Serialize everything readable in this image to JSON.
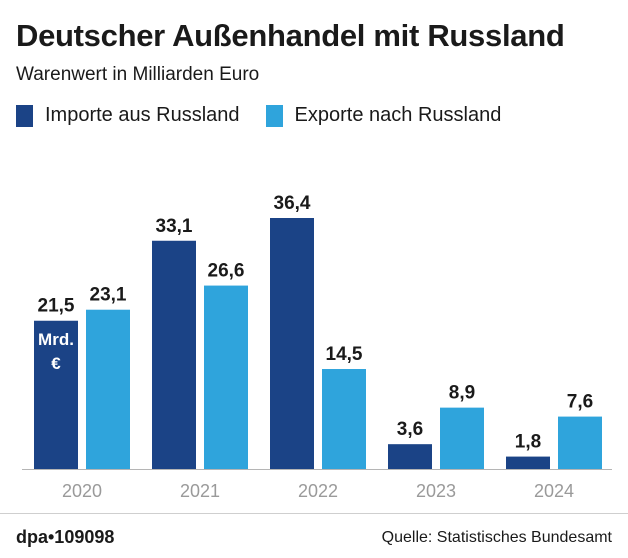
{
  "title": "Deutscher Außenhandel mit Russland",
  "subtitle": "Warenwert in Milliarden Euro",
  "unit_label": [
    "Mrd.",
    "€"
  ],
  "brand": "dpa•109098",
  "source": "Quelle: Statistisches Bundesamt",
  "colors": {
    "imports": "#1b4386",
    "exports": "#2fa4dc",
    "axis": "#b5b5b5",
    "tick_text": "#9a9a9a"
  },
  "chart_data": {
    "type": "bar",
    "categories": [
      "2020",
      "2021",
      "2022",
      "2023",
      "2024"
    ],
    "series": [
      {
        "name": "Importe aus Russland",
        "values": [
          21.5,
          33.1,
          36.4,
          3.6,
          1.8
        ],
        "labels": [
          "21,5",
          "33,1",
          "36,4",
          "3,6",
          "1,8"
        ]
      },
      {
        "name": "Exporte nach Russland",
        "values": [
          23.1,
          26.6,
          14.5,
          8.9,
          7.6
        ],
        "labels": [
          "23,1",
          "26,6",
          "14,5",
          "8,9",
          "7,6"
        ]
      }
    ],
    "ylim": [
      0,
      36.4
    ],
    "legend": "top-left",
    "grid": false
  }
}
